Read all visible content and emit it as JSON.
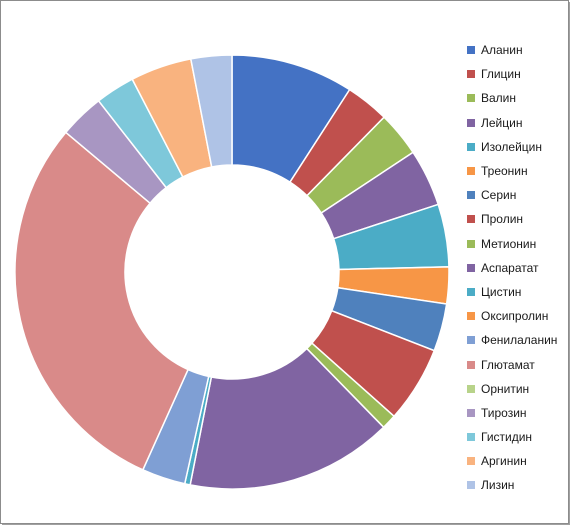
{
  "chart_data": {
    "type": "pie",
    "style": "donut",
    "title": "",
    "legend_position": "right",
    "categories": [
      "Аланин",
      "Глицин",
      "Валин",
      "Лейцин",
      "Изолейцин",
      "Треонин",
      "Серин",
      "Пролин",
      "Метионин",
      "Аспаратат",
      "Цистин",
      "Оксипролин",
      "Фенилаланин",
      "Глютамат",
      "Орнитин",
      "Тирозин",
      "Гистидин",
      "Аргинин",
      "Лизин"
    ],
    "values": [
      9.0,
      3.2,
      3.3,
      4.2,
      4.6,
      2.7,
      3.5,
      5.6,
      1.1,
      15.2,
      0.4,
      0.0,
      3.2,
      29.0,
      0.0,
      3.3,
      2.9,
      4.5,
      3.0
    ],
    "colors": [
      "#4472C4",
      "#C0504D",
      "#9BBB59",
      "#8064A2",
      "#4BACC6",
      "#F79646",
      "#4F81BD",
      "#C0504D",
      "#9BBB59",
      "#8064A2",
      "#4BACC6",
      "#F79646",
      "#7F9FD4",
      "#D98A89",
      "#B8D38A",
      "#A896C2",
      "#7EC8DA",
      "#F9B37F",
      "#AFC3E6"
    ]
  }
}
